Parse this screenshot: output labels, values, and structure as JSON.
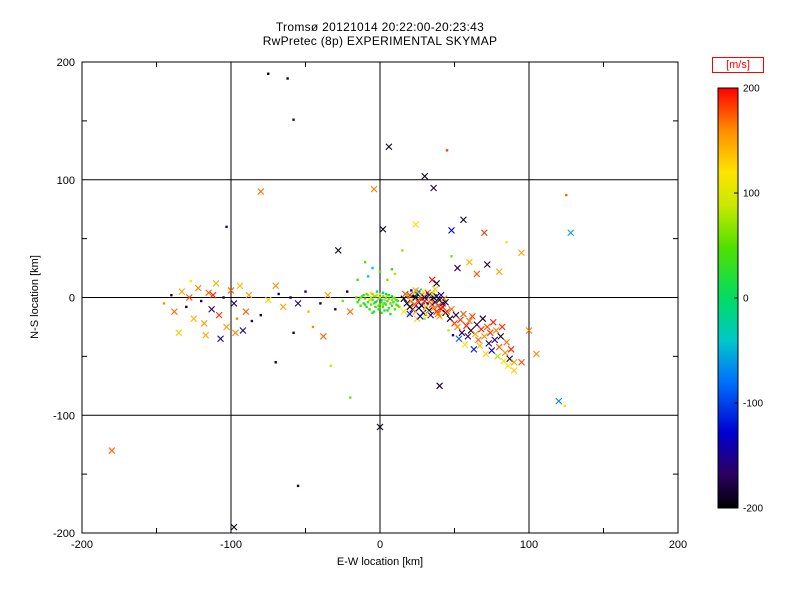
{
  "page": {
    "background": "#ffffff",
    "axis_color": "#000000"
  },
  "chart_data": {
    "type": "scatter",
    "title": "Tromsø 20121014 20:22:00-20:23:43",
    "subtitle": "RwPretec (8p) EXPERIMENTAL SKYMAP",
    "xlabel": "E-W location [km]",
    "ylabel": "N-S location [km]",
    "xlim": [
      -200,
      200
    ],
    "ylim": [
      -200,
      200
    ],
    "x_ticks": [
      -200,
      -100,
      0,
      100,
      200
    ],
    "y_ticks": [
      200,
      100,
      0,
      -100,
      -200
    ],
    "grid": true,
    "grid_lines_x": [
      -100,
      0,
      100
    ],
    "grid_lines_y": [
      -100,
      0,
      100
    ],
    "minor_ticks": [
      -150,
      -50,
      50,
      150
    ],
    "colorbar": {
      "label": "[m/s]",
      "label_color": "#ff0000",
      "min": -200,
      "max": 200,
      "ticks": [
        200,
        100,
        0,
        -100,
        -200
      ]
    },
    "colormap": [
      [
        0.0,
        "#000000"
      ],
      [
        0.08,
        "#2c0060"
      ],
      [
        0.18,
        "#0000d0"
      ],
      [
        0.3,
        "#0070ff"
      ],
      [
        0.4,
        "#00c8c8"
      ],
      [
        0.5,
        "#00dc64"
      ],
      [
        0.62,
        "#50e000"
      ],
      [
        0.72,
        "#c8e800"
      ],
      [
        0.8,
        "#ffe400"
      ],
      [
        0.9,
        "#ff8c00"
      ],
      [
        1.0,
        "#ff0000"
      ]
    ],
    "markers": {
      "0": "dot",
      "1": "cross"
    },
    "points": [
      [
        -14,
        -2,
        40,
        0
      ],
      [
        -12,
        1,
        55,
        0
      ],
      [
        -11,
        -5,
        30,
        0
      ],
      [
        -10,
        -1,
        60,
        0
      ],
      [
        -9,
        -8,
        25,
        0
      ],
      [
        -8,
        2,
        70,
        0
      ],
      [
        -8,
        -4,
        45,
        0
      ],
      [
        -7,
        -10,
        35,
        0
      ],
      [
        -6,
        0,
        80,
        0
      ],
      [
        -6,
        -6,
        50,
        0
      ],
      [
        -5,
        3,
        65,
        0
      ],
      [
        -5,
        -2,
        40,
        0
      ],
      [
        -4,
        -12,
        20,
        0
      ],
      [
        -4,
        -5,
        55,
        0
      ],
      [
        -3,
        1,
        75,
        0
      ],
      [
        -3,
        -8,
        30,
        0
      ],
      [
        -2,
        -3,
        60,
        0
      ],
      [
        -2,
        2,
        90,
        0
      ],
      [
        -1,
        -10,
        45,
        0
      ],
      [
        -1,
        -1,
        70,
        0
      ],
      [
        0,
        -6,
        35,
        0
      ],
      [
        0,
        0,
        85,
        0
      ],
      [
        1,
        -13,
        25,
        0
      ],
      [
        1,
        -4,
        55,
        0
      ],
      [
        2,
        1,
        65,
        0
      ],
      [
        2,
        -8,
        40,
        0
      ],
      [
        3,
        -2,
        75,
        0
      ],
      [
        3,
        -11,
        30,
        0
      ],
      [
        4,
        0,
        60,
        0
      ],
      [
        4,
        -6,
        50,
        0
      ],
      [
        5,
        -3,
        45,
        0
      ],
      [
        5,
        2,
        80,
        0
      ],
      [
        6,
        -9,
        35,
        0
      ],
      [
        6,
        -1,
        65,
        0
      ],
      [
        7,
        -5,
        55,
        0
      ],
      [
        7,
        -14,
        20,
        0
      ],
      [
        8,
        -2,
        70,
        0
      ],
      [
        8,
        -7,
        40,
        0
      ],
      [
        9,
        0,
        60,
        0
      ],
      [
        9,
        -4,
        30,
        0
      ],
      [
        10,
        -10,
        50,
        0
      ],
      [
        10,
        -1,
        75,
        0
      ],
      [
        11,
        -6,
        45,
        0
      ],
      [
        12,
        -3,
        25,
        0
      ],
      [
        13,
        -8,
        65,
        0
      ],
      [
        -15,
        -4,
        35,
        0
      ],
      [
        -16,
        0,
        50,
        0
      ],
      [
        -13,
        -7,
        45,
        0
      ],
      [
        0,
        3,
        95,
        0
      ],
      [
        2,
        4,
        -20,
        0
      ],
      [
        -2,
        5,
        -35,
        0
      ],
      [
        4,
        3,
        -10,
        0
      ],
      [
        -6,
        4,
        110,
        0
      ],
      [
        1,
        -2,
        -30,
        0
      ],
      [
        -3,
        -4,
        -45,
        0
      ],
      [
        5,
        -11,
        15,
        0
      ],
      [
        -9,
        3,
        60,
        0
      ],
      [
        -11,
        2,
        30,
        0
      ],
      [
        -7,
        -2,
        85,
        0
      ],
      [
        3,
        -5,
        -25,
        0
      ],
      [
        -1,
        -7,
        55,
        0
      ],
      [
        6,
        2,
        40,
        0
      ],
      [
        -4,
        1,
        70,
        0
      ],
      [
        8,
        1,
        -15,
        0
      ],
      [
        11,
        -2,
        35,
        0
      ],
      [
        -10,
        -6,
        25,
        0
      ],
      [
        -13,
        0,
        60,
        0
      ],
      [
        12,
        -7,
        50,
        0
      ],
      [
        0,
        -9,
        40,
        0
      ],
      [
        -5,
        -13,
        30,
        0
      ],
      [
        2,
        -6,
        65,
        0
      ],
      [
        16,
        -1,
        -190,
        1
      ],
      [
        17,
        3,
        180,
        1
      ],
      [
        18,
        -5,
        -180,
        1
      ],
      [
        19,
        0,
        170,
        0
      ],
      [
        20,
        -8,
        -200,
        1
      ],
      [
        20,
        2,
        190,
        1
      ],
      [
        21,
        -3,
        160,
        1
      ],
      [
        22,
        -10,
        -170,
        1
      ],
      [
        22,
        1,
        -190,
        0
      ],
      [
        23,
        -6,
        175,
        1
      ],
      [
        24,
        0,
        -200,
        1
      ],
      [
        24,
        -12,
        150,
        1
      ],
      [
        25,
        3,
        -185,
        1
      ],
      [
        26,
        -4,
        195,
        1
      ],
      [
        26,
        -9,
        -160,
        1
      ],
      [
        27,
        -1,
        185,
        0
      ],
      [
        28,
        -7,
        -195,
        1
      ],
      [
        28,
        2,
        165,
        1
      ],
      [
        29,
        -13,
        -175,
        1
      ],
      [
        30,
        -3,
        200,
        1
      ],
      [
        30,
        0,
        -185,
        1
      ],
      [
        31,
        -8,
        155,
        1
      ],
      [
        32,
        -5,
        -170,
        0
      ],
      [
        32,
        4,
        190,
        1
      ],
      [
        33,
        -11,
        -190,
        1
      ],
      [
        34,
        -2,
        170,
        1
      ],
      [
        34,
        -15,
        -155,
        1
      ],
      [
        35,
        -6,
        185,
        1
      ],
      [
        36,
        0,
        -200,
        1
      ],
      [
        36,
        -9,
        160,
        1
      ],
      [
        37,
        -4,
        -180,
        1
      ],
      [
        38,
        -12,
        195,
        1
      ],
      [
        38,
        1,
        -165,
        1
      ],
      [
        39,
        -7,
        175,
        1
      ],
      [
        40,
        -2,
        -190,
        1
      ],
      [
        40,
        -16,
        150,
        1
      ],
      [
        41,
        -10,
        185,
        1
      ],
      [
        42,
        -5,
        -175,
        1
      ],
      [
        43,
        -1,
        165,
        1
      ],
      [
        44,
        -13,
        -195,
        1
      ],
      [
        19,
        -15,
        140,
        0
      ],
      [
        21,
        6,
        -150,
        0
      ],
      [
        25,
        -18,
        130,
        1
      ],
      [
        29,
        5,
        120,
        1
      ],
      [
        33,
        2,
        -140,
        1
      ],
      [
        37,
        7,
        135,
        1
      ],
      [
        23,
        4,
        100,
        0
      ],
      [
        27,
        -16,
        -130,
        1
      ],
      [
        31,
        -14,
        110,
        1
      ],
      [
        35,
        3,
        90,
        1
      ],
      [
        18,
        2,
        60,
        0
      ],
      [
        26,
        5,
        -60,
        1
      ],
      [
        30,
        -18,
        80,
        0
      ],
      [
        42,
        -8,
        200,
        1
      ],
      [
        44,
        -4,
        -185,
        1
      ],
      [
        16,
        -12,
        120,
        1
      ],
      [
        20,
        -14,
        -120,
        1
      ],
      [
        24,
        6,
        145,
        1
      ],
      [
        39,
        -14,
        170,
        1
      ],
      [
        41,
        2,
        -155,
        1
      ],
      [
        45,
        -12,
        180,
        1
      ],
      [
        47,
        -18,
        -190,
        1
      ],
      [
        48,
        -10,
        170,
        1
      ],
      [
        50,
        -22,
        190,
        1
      ],
      [
        51,
        -15,
        -180,
        1
      ],
      [
        52,
        -25,
        160,
        1
      ],
      [
        54,
        -19,
        185,
        1
      ],
      [
        55,
        -30,
        -170,
        1
      ],
      [
        56,
        -14,
        175,
        1
      ],
      [
        58,
        -24,
        195,
        1
      ],
      [
        59,
        -33,
        -160,
        1
      ],
      [
        60,
        -20,
        165,
        1
      ],
      [
        61,
        -28,
        -190,
        1
      ],
      [
        62,
        -16,
        185,
        1
      ],
      [
        64,
        -31,
        150,
        1
      ],
      [
        65,
        -23,
        -175,
        1
      ],
      [
        66,
        -36,
        170,
        1
      ],
      [
        68,
        -27,
        190,
        1
      ],
      [
        69,
        -18,
        -185,
        1
      ],
      [
        70,
        -33,
        160,
        1
      ],
      [
        72,
        -25,
        175,
        1
      ],
      [
        73,
        -39,
        -165,
        1
      ],
      [
        74,
        -30,
        185,
        1
      ],
      [
        76,
        -21,
        195,
        1
      ],
      [
        77,
        -36,
        -150,
        1
      ],
      [
        78,
        -28,
        165,
        1
      ],
      [
        80,
        -42,
        175,
        1
      ],
      [
        81,
        -33,
        -190,
        1
      ],
      [
        82,
        -25,
        185,
        1
      ],
      [
        84,
        -47,
        160,
        1
      ],
      [
        85,
        -38,
        170,
        1
      ],
      [
        87,
        -52,
        -180,
        1
      ],
      [
        88,
        -44,
        190,
        1
      ],
      [
        90,
        -55,
        150,
        1
      ],
      [
        46,
        -28,
        90,
        0
      ],
      [
        53,
        -35,
        -90,
        1
      ],
      [
        57,
        -40,
        120,
        1
      ],
      [
        63,
        -44,
        -110,
        1
      ],
      [
        71,
        -48,
        130,
        1
      ],
      [
        79,
        -50,
        80,
        1
      ],
      [
        83,
        -54,
        110,
        1
      ],
      [
        49,
        -32,
        -140,
        0
      ],
      [
        67,
        -41,
        140,
        1
      ],
      [
        75,
        -45,
        -130,
        1
      ],
      [
        86,
        -58,
        120,
        1
      ],
      [
        -145,
        -5,
        160,
        0
      ],
      [
        -140,
        2,
        -180,
        0
      ],
      [
        -138,
        -12,
        170,
        1
      ],
      [
        -133,
        5,
        150,
        1
      ],
      [
        -130,
        -8,
        -190,
        0
      ],
      [
        -128,
        0,
        180,
        1
      ],
      [
        -125,
        -18,
        140,
        1
      ],
      [
        -122,
        8,
        165,
        1
      ],
      [
        -120,
        -3,
        -170,
        0
      ],
      [
        -118,
        -22,
        155,
        1
      ],
      [
        -115,
        4,
        175,
        1
      ],
      [
        -113,
        -10,
        -160,
        1
      ],
      [
        -110,
        12,
        145,
        1
      ],
      [
        -108,
        -15,
        185,
        1
      ],
      [
        -105,
        0,
        -185,
        0
      ],
      [
        -103,
        -25,
        150,
        1
      ],
      [
        -100,
        6,
        170,
        1
      ],
      [
        -98,
        -5,
        -175,
        1
      ],
      [
        -96,
        -18,
        160,
        0
      ],
      [
        -94,
        10,
        140,
        1
      ],
      [
        -92,
        -28,
        -150,
        1
      ],
      [
        -90,
        -12,
        175,
        1
      ],
      [
        -88,
        2,
        155,
        1
      ],
      [
        -86,
        -20,
        -165,
        0
      ],
      [
        -135,
        -30,
        130,
        1
      ],
      [
        -127,
        14,
        120,
        0
      ],
      [
        -117,
        -32,
        145,
        1
      ],
      [
        -107,
        -35,
        -140,
        1
      ],
      [
        -97,
        -30,
        160,
        1
      ],
      [
        -112,
        2,
        190,
        1
      ],
      [
        -60,
        0,
        -180,
        0
      ],
      [
        -65,
        -8,
        150,
        1
      ],
      [
        -50,
        5,
        -170,
        0
      ],
      [
        -70,
        10,
        160,
        1
      ],
      [
        -48,
        -12,
        140,
        0
      ],
      [
        -55,
        -5,
        -160,
        1
      ],
      [
        -75,
        -2,
        130,
        1
      ],
      [
        -80,
        -15,
        -185,
        0
      ],
      [
        -40,
        -5,
        -190,
        0
      ],
      [
        -35,
        2,
        155,
        1
      ],
      [
        -30,
        -10,
        -175,
        0
      ],
      [
        -25,
        -3,
        60,
        0
      ],
      [
        -22,
        5,
        -185,
        0
      ],
      [
        -20,
        -12,
        170,
        1
      ],
      [
        -68,
        3,
        -150,
        0
      ],
      [
        -15,
        15,
        40,
        0
      ],
      [
        -8,
        18,
        -30,
        0
      ],
      [
        0,
        22,
        55,
        0
      ],
      [
        8,
        24,
        35,
        0
      ],
      [
        -75,
        190,
        -190,
        0
      ],
      [
        -62,
        186,
        -185,
        0
      ],
      [
        -58,
        151,
        -165,
        0
      ],
      [
        -80,
        90,
        170,
        1
      ],
      [
        -103,
        60,
        -140,
        0
      ],
      [
        30,
        103,
        -190,
        1
      ],
      [
        36,
        93,
        -175,
        1
      ],
      [
        45,
        125,
        180,
        0
      ],
      [
        125,
        87,
        170,
        0
      ],
      [
        128,
        55,
        -60,
        1
      ],
      [
        70,
        55,
        185,
        1
      ],
      [
        85,
        47,
        120,
        0
      ],
      [
        95,
        38,
        150,
        1
      ],
      [
        48,
        57,
        -130,
        1
      ],
      [
        56,
        66,
        -190,
        1
      ],
      [
        2,
        58,
        -190,
        1
      ],
      [
        -28,
        40,
        -195,
        1
      ],
      [
        15,
        40,
        70,
        0
      ],
      [
        -45,
        -25,
        160,
        0
      ],
      [
        -38,
        -33,
        175,
        1
      ],
      [
        -58,
        -30,
        -190,
        0
      ],
      [
        -20,
        -85,
        60,
        0
      ],
      [
        0,
        -110,
        -190,
        1
      ],
      [
        -180,
        -130,
        170,
        1
      ],
      [
        -98,
        -195,
        -190,
        1
      ],
      [
        -55,
        -160,
        -175,
        0
      ],
      [
        120,
        -88,
        -70,
        1
      ],
      [
        124,
        -92,
        110,
        0
      ],
      [
        95,
        -55,
        180,
        1
      ],
      [
        90,
        -62,
        130,
        1
      ],
      [
        105,
        -48,
        160,
        1
      ],
      [
        60,
        30,
        140,
        1
      ],
      [
        52,
        25,
        -170,
        1
      ],
      [
        48,
        35,
        60,
        0
      ],
      [
        65,
        20,
        175,
        1
      ],
      [
        72,
        28,
        -185,
        1
      ],
      [
        80,
        22,
        150,
        1
      ],
      [
        24,
        62,
        110,
        1
      ],
      [
        -10,
        30,
        50,
        0
      ],
      [
        -5,
        25,
        -40,
        0
      ],
      [
        35,
        15,
        200,
        1
      ],
      [
        38,
        12,
        -195,
        1
      ],
      [
        10,
        20,
        80,
        0
      ],
      [
        5,
        15,
        65,
        0
      ],
      [
        40,
        -75,
        -185,
        1
      ],
      [
        -70,
        -55,
        -180,
        0
      ],
      [
        6,
        128,
        -190,
        1
      ],
      [
        -4,
        92,
        165,
        1
      ],
      [
        -33,
        -58,
        90,
        0
      ],
      [
        100,
        -28,
        165,
        1
      ]
    ]
  }
}
